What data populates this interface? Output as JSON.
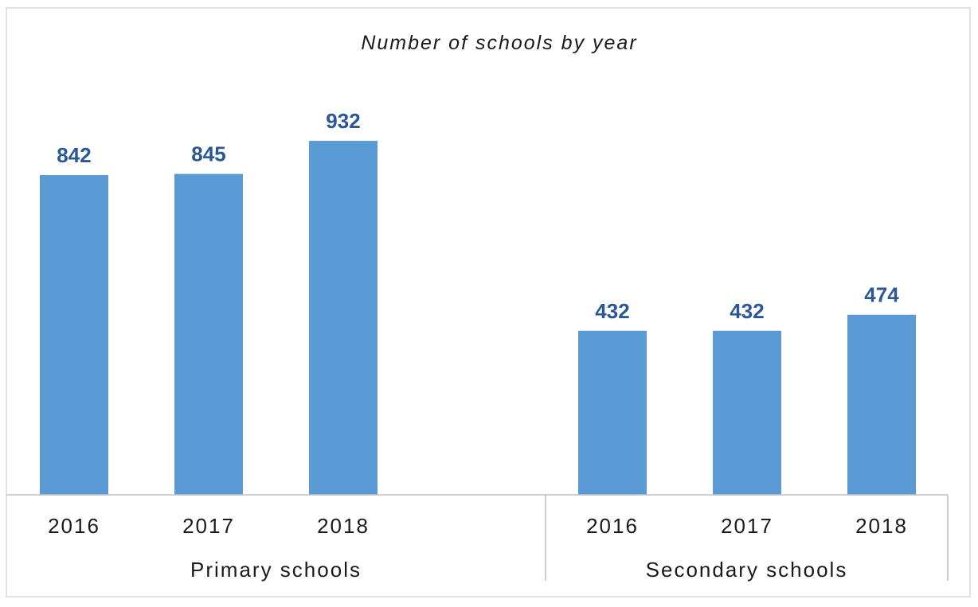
{
  "chart_data": {
    "type": "bar",
    "title": "Number of schools by year",
    "groups": [
      {
        "name": "Primary schools",
        "categories": [
          "2016",
          "2017",
          "2018"
        ],
        "values": [
          842,
          845,
          932
        ]
      },
      {
        "name": "Secondary schools",
        "categories": [
          "2016",
          "2017",
          "2018"
        ],
        "values": [
          432,
          432,
          474
        ]
      }
    ],
    "bar_color": "#5b9bd5",
    "label_color": "#2b5797",
    "ylim": [
      0,
      1000
    ],
    "grid": false,
    "legend": "none"
  }
}
